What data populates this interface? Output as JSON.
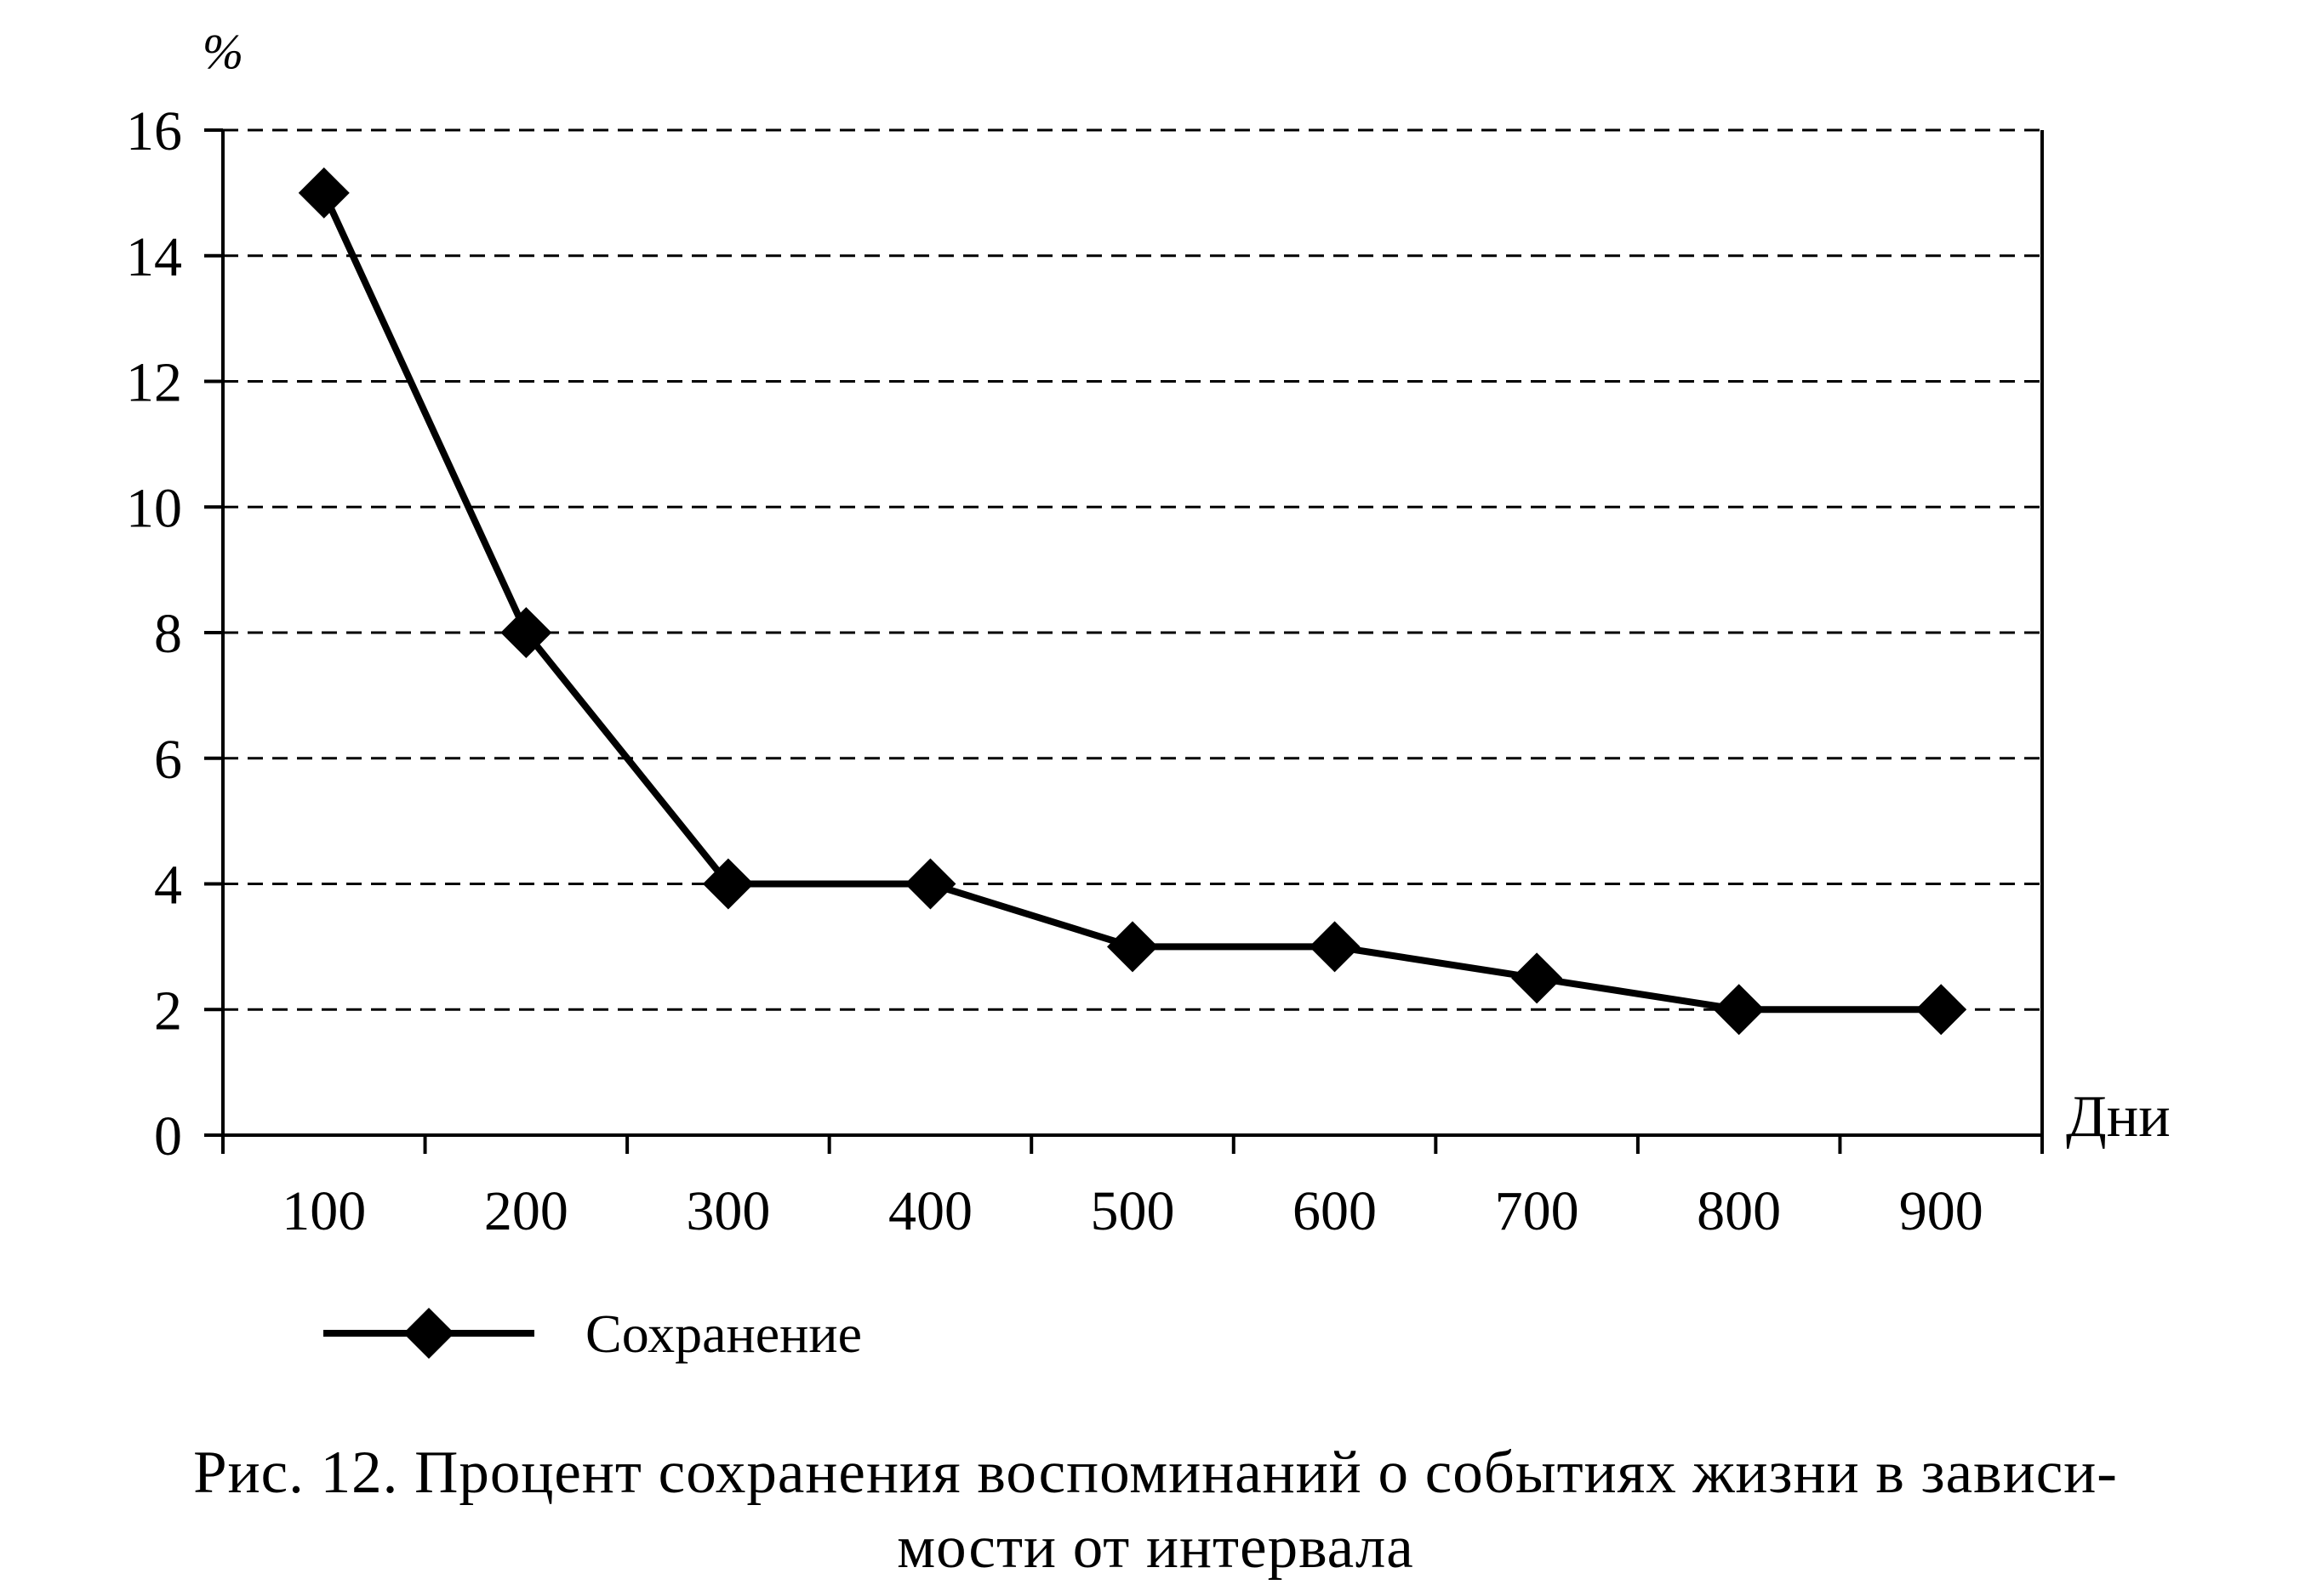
{
  "chart_data": {
    "type": "line",
    "ylabel": "%",
    "xlabel": "Дни",
    "ylim": [
      0,
      16
    ],
    "yticks": [
      0,
      2,
      4,
      6,
      8,
      10,
      12,
      14,
      16
    ],
    "grid": "horizontal dashed",
    "categories": [
      "100",
      "200",
      "300",
      "400",
      "500",
      "600",
      "700",
      "800",
      "900"
    ],
    "x": [
      100,
      200,
      300,
      400,
      500,
      600,
      700,
      800,
      900
    ],
    "series": [
      {
        "name": "Сохранение",
        "values": [
          15,
          8,
          4,
          4,
          3,
          3,
          2.5,
          2,
          2
        ]
      }
    ],
    "legend": "bottom",
    "colors": {
      "line": "#000000",
      "grid": "#000000"
    }
  },
  "caption": {
    "line1": "Рис. 12. Процент сохранения воспоминаний о событиях жизни в зависи-",
    "line2": "мости от интервала"
  }
}
